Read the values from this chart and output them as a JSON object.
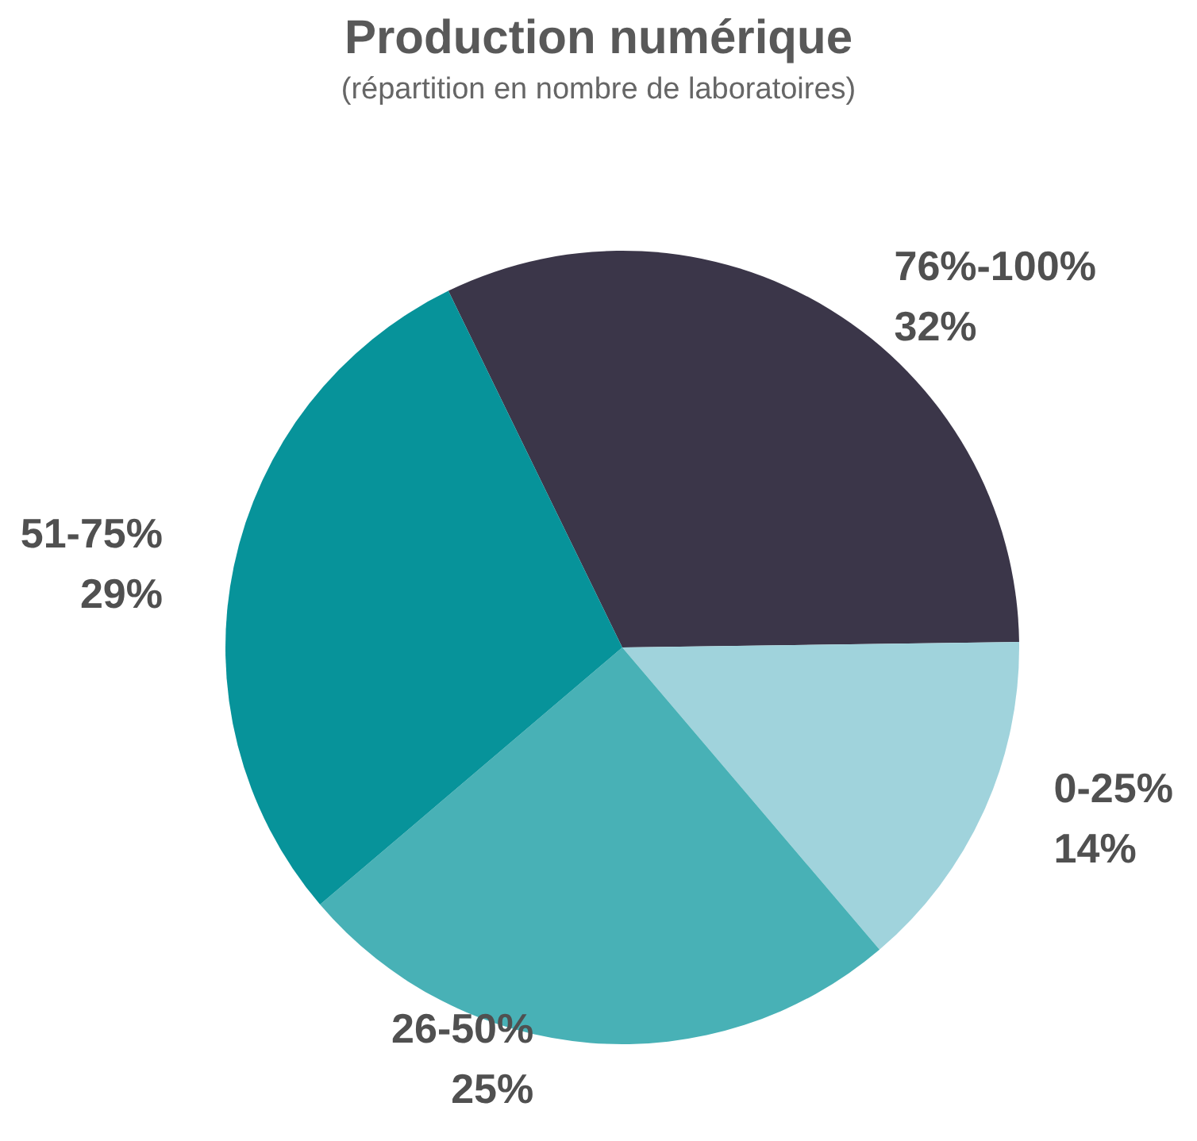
{
  "chart_data": {
    "type": "pie",
    "title": "Production numérique",
    "subtitle": "(répartition en nombre de laboratoires)",
    "categories": [
      "76%-100%",
      "0-25%",
      "26-50%",
      "51-75%"
    ],
    "values": [
      32,
      14,
      25,
      29
    ],
    "colors": [
      "#3b3649",
      "#a0d3dc",
      "#48b1b6",
      "#07939a"
    ],
    "value_labels": [
      "32%",
      "14%",
      "25%",
      "29%"
    ],
    "legend": false
  }
}
